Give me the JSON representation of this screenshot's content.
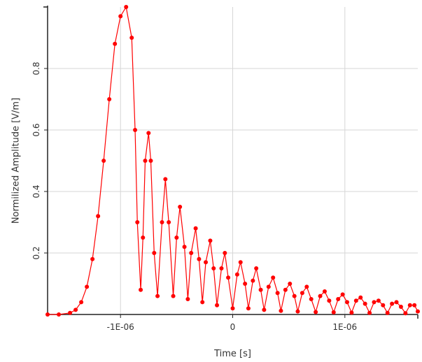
{
  "chart_data": {
    "type": "line",
    "title": "",
    "xlabel": "Time [s]",
    "ylabel": "Normilized Amplitude [V/m]",
    "xlim": [
      -1.65e-06,
      1.65e-06
    ],
    "ylim": [
      0,
      1.0
    ],
    "x_ticks": [
      {
        "value": -1e-06,
        "label": "-1E-06"
      },
      {
        "value": 0,
        "label": "0"
      },
      {
        "value": 1e-06,
        "label": "1E-06"
      }
    ],
    "y_ticks": [
      {
        "value": 0.2,
        "label": "0.2"
      },
      {
        "value": 0.4,
        "label": "0.4"
      },
      {
        "value": 0.6,
        "label": "0.6"
      },
      {
        "value": 0.8,
        "label": "0.8"
      }
    ],
    "grid": true,
    "legend": "none",
    "series": [
      {
        "color": "#ff0000",
        "marker": "circle",
        "x": [
          -1.65e-06,
          -1.55e-06,
          -1.45e-06,
          -1.4e-06,
          -1.35e-06,
          -1.3e-06,
          -1.25e-06,
          -1.2e-06,
          -1.15e-06,
          -1.1e-06,
          -1.05e-06,
          -1e-06,
          -9.5e-07,
          -9e-07,
          -8.7e-07,
          -8.5e-07,
          -8.2e-07,
          -8e-07,
          -7.8e-07,
          -7.5e-07,
          -7.3e-07,
          -7e-07,
          -6.7e-07,
          -6.3e-07,
          -6e-07,
          -5.7e-07,
          -5.3e-07,
          -5e-07,
          -4.7e-07,
          -4.3e-07,
          -4e-07,
          -3.7e-07,
          -3.3e-07,
          -3e-07,
          -2.7e-07,
          -2.4e-07,
          -2e-07,
          -1.7e-07,
          -1.4e-07,
          -1e-07,
          -7e-08,
          -4e-08,
          0.0,
          4e-08,
          7e-08,
          1.1e-07,
          1.4e-07,
          1.8e-07,
          2.1e-07,
          2.5e-07,
          2.8e-07,
          3.2e-07,
          3.6e-07,
          4e-07,
          4.3e-07,
          4.7e-07,
          5.1e-07,
          5.5e-07,
          5.8e-07,
          6.2e-07,
          6.6e-07,
          7e-07,
          7.4e-07,
          7.8e-07,
          8.2e-07,
          8.6e-07,
          9e-07,
          9.4e-07,
          9.8e-07,
          1.02e-06,
          1.06e-06,
          1.1e-06,
          1.14e-06,
          1.18e-06,
          1.22e-06,
          1.26e-06,
          1.3e-06,
          1.34e-06,
          1.38e-06,
          1.42e-06,
          1.46e-06,
          1.5e-06,
          1.54e-06,
          1.58e-06,
          1.62e-06,
          1.65e-06
        ],
        "y": [
          0.0,
          0.0,
          0.005,
          0.015,
          0.04,
          0.09,
          0.18,
          0.32,
          0.5,
          0.7,
          0.88,
          0.97,
          1.0,
          0.9,
          0.6,
          0.3,
          0.08,
          0.25,
          0.5,
          0.59,
          0.5,
          0.2,
          0.06,
          0.3,
          0.44,
          0.3,
          0.06,
          0.25,
          0.35,
          0.22,
          0.05,
          0.2,
          0.28,
          0.18,
          0.04,
          0.17,
          0.24,
          0.15,
          0.03,
          0.15,
          0.2,
          0.12,
          0.02,
          0.13,
          0.17,
          0.1,
          0.02,
          0.11,
          0.15,
          0.08,
          0.015,
          0.09,
          0.12,
          0.07,
          0.012,
          0.08,
          0.1,
          0.06,
          0.01,
          0.07,
          0.09,
          0.05,
          0.008,
          0.06,
          0.075,
          0.045,
          0.007,
          0.05,
          0.065,
          0.04,
          0.006,
          0.045,
          0.055,
          0.035,
          0.005,
          0.04,
          0.045,
          0.03,
          0.005,
          0.035,
          0.04,
          0.025,
          0.004,
          0.03,
          0.03,
          0.01
        ]
      }
    ]
  }
}
